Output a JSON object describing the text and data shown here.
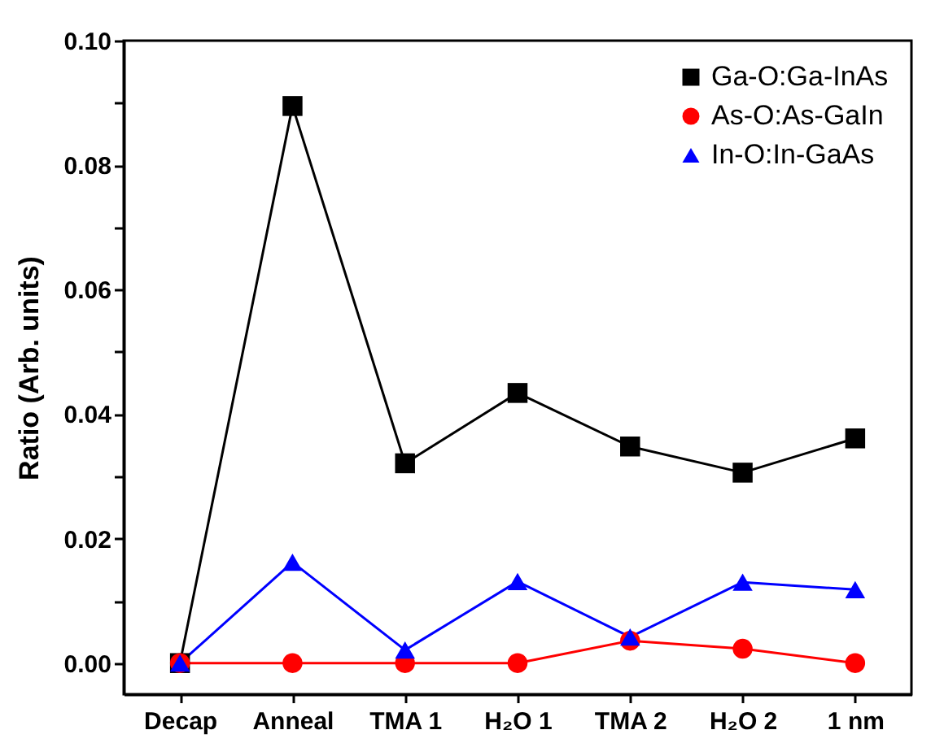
{
  "chart_data": {
    "type": "line",
    "ylabel": "Ratio (Arb. units)",
    "categories": [
      "Decap",
      "Anneal",
      "TMA 1",
      "H₂O 1",
      "TMA 2",
      "H₂O 2",
      "1 nm"
    ],
    "series": [
      {
        "name": "Ga-O:Ga-InAs",
        "color": "#000000",
        "marker": "square",
        "values": [
          0,
          0.0895,
          0.0321,
          0.0434,
          0.0348,
          0.0306,
          0.0361
        ]
      },
      {
        "name": "As-O:As-GaIn",
        "color": "#ff0000",
        "marker": "circle",
        "values": [
          0,
          0,
          0,
          0,
          0.0036,
          0.0023,
          0
        ]
      },
      {
        "name": "In-O:In-GaAs",
        "color": "#0000ff",
        "marker": "triangle",
        "values": [
          0,
          0.0162,
          0.0021,
          0.0131,
          0.0042,
          0.013,
          0.0118
        ]
      }
    ],
    "ylim": [
      -0.005,
      0.1
    ],
    "yticks": [
      {
        "value": 0,
        "label": "0.00"
      },
      {
        "value": 0.01,
        "label": null
      },
      0.02,
      {
        "value": 0.03,
        "label": null
      },
      0.04,
      {
        "value": 0.05,
        "label": null
      },
      0.06,
      {
        "value": 0.07,
        "label": null
      },
      0.08,
      {
        "value": 0.09,
        "label": null
      },
      {
        "value": 0.1,
        "label": "0.10"
      }
    ],
    "legend": "top right",
    "grid": false
  }
}
